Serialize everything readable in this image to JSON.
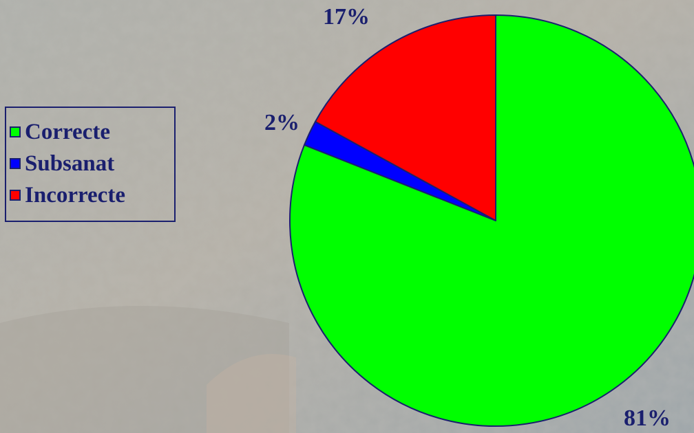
{
  "chart_data": {
    "type": "pie",
    "categories": [
      "Correcte",
      "Subsanat",
      "Incorrecte"
    ],
    "values": [
      81,
      2,
      17
    ],
    "value_labels": [
      "81%",
      "2%",
      "17%"
    ],
    "colors": [
      "#00ff00",
      "#0000ff",
      "#ff0000"
    ],
    "legend_position": "left",
    "label_color": "#1a1f6e"
  }
}
